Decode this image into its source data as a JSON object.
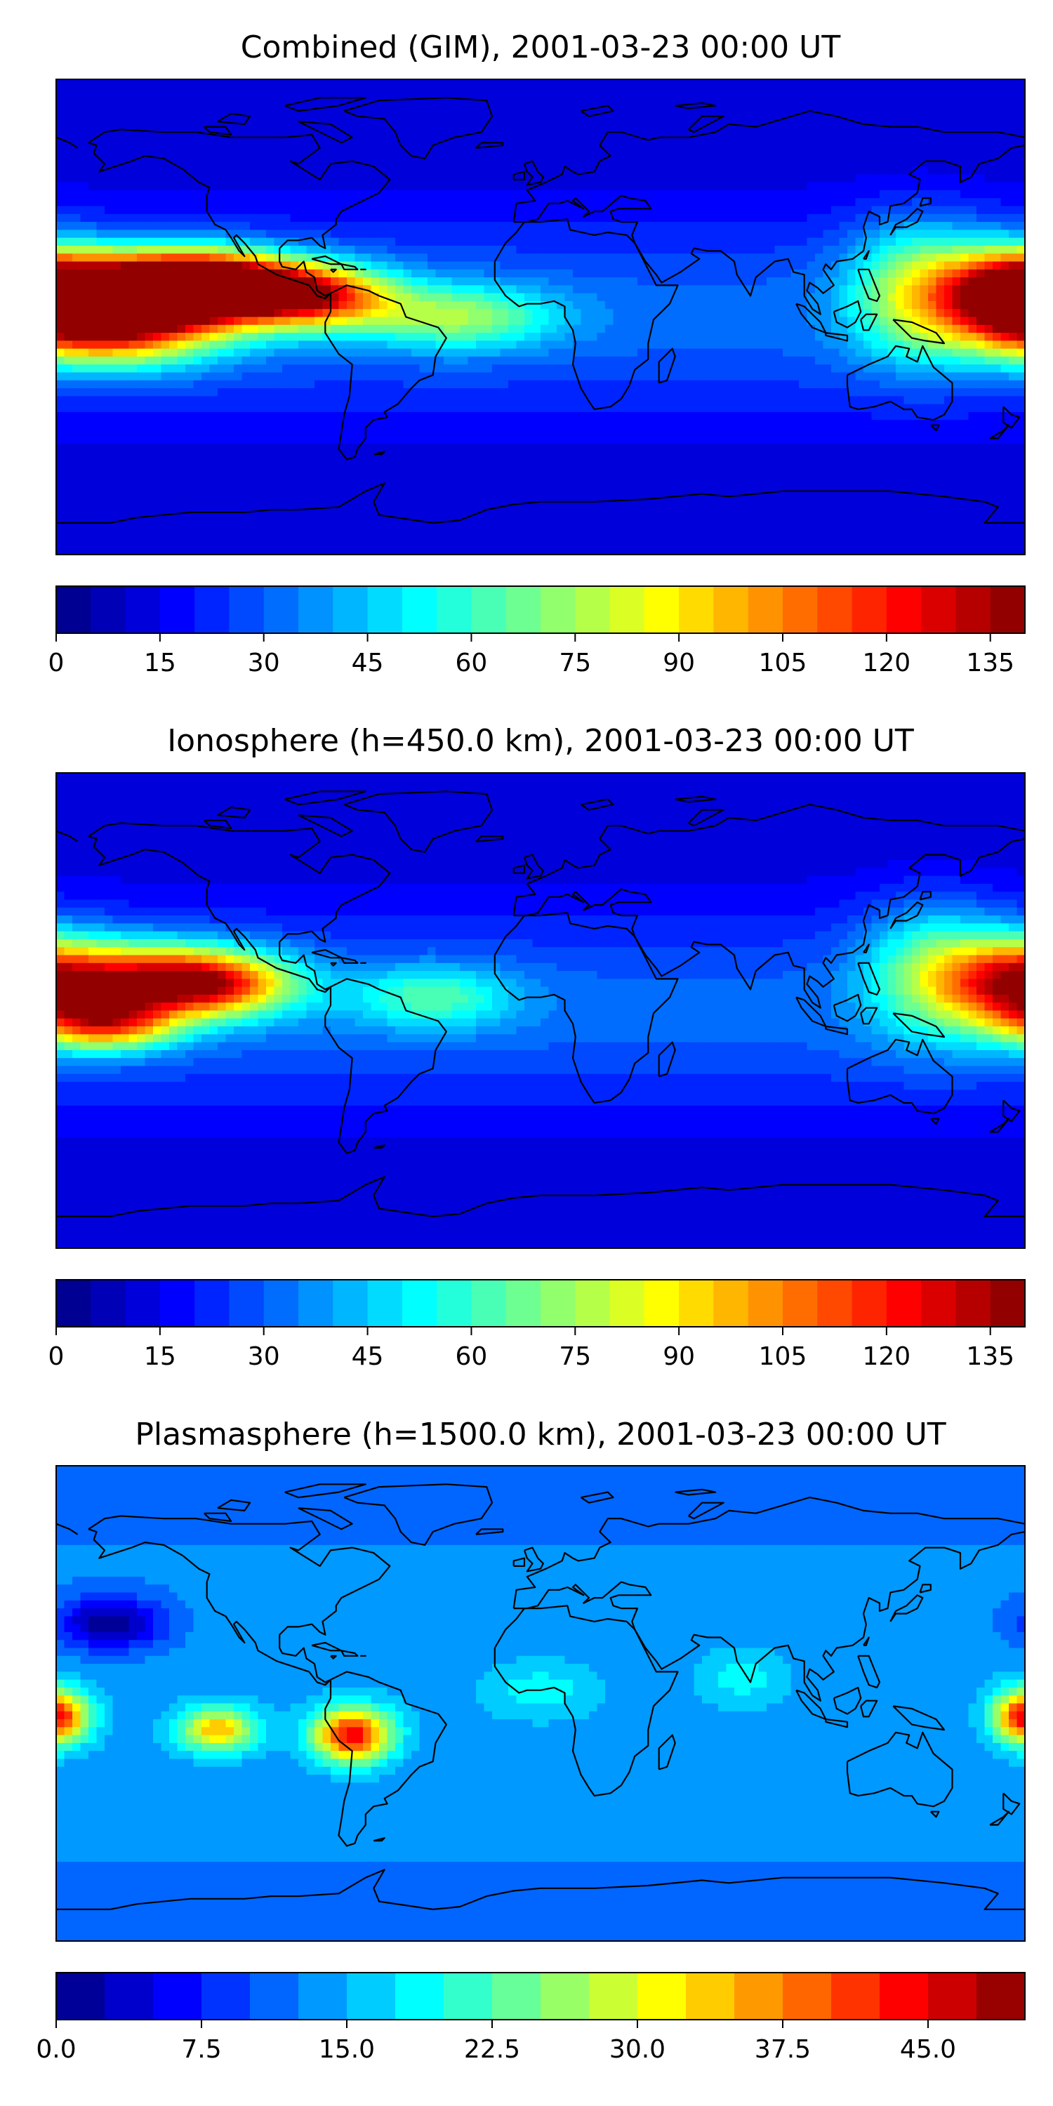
{
  "chart_data": [
    {
      "type": "heatmap",
      "title": "Combined (GIM), 2001-03-23 00:00 UT",
      "colorbar": {
        "min": 0,
        "max": 140,
        "step": 5,
        "ticks": [
          0,
          15,
          30,
          45,
          60,
          75,
          90,
          105,
          120,
          135
        ],
        "tick_labels": [
          "0",
          "15",
          "30",
          "45",
          "60",
          "75",
          "90",
          "105",
          "120",
          "135"
        ]
      },
      "blobs": [
        {
          "lon": -150,
          "lat": 10,
          "value": 128,
          "rlon": 35,
          "rlat": 14
        },
        {
          "lon": -120,
          "lat": 12,
          "value": 125,
          "rlon": 30,
          "rlat": 12
        },
        {
          "lon": -85,
          "lat": 8,
          "value": 105,
          "rlon": 30,
          "rlat": 12
        },
        {
          "lon": -160,
          "lat": -5,
          "value": 95,
          "rlon": 40,
          "rlat": 14
        },
        {
          "lon": 175,
          "lat": 10,
          "value": 110,
          "rlon": 25,
          "rlat": 16
        },
        {
          "lon": 140,
          "lat": 10,
          "value": 65,
          "rlon": 25,
          "rlat": 25
        },
        {
          "lon": -30,
          "lat": 0,
          "value": 58,
          "rlon": 35,
          "rlat": 12
        }
      ]
    },
    {
      "type": "heatmap",
      "title": "Ionosphere  (h=450.0 km), 2001-03-23 00:00 UT",
      "colorbar": {
        "min": 0,
        "max": 140,
        "step": 5,
        "ticks": [
          0,
          15,
          30,
          45,
          60,
          75,
          90,
          105,
          120,
          135
        ],
        "tick_labels": [
          "0",
          "15",
          "30",
          "45",
          "60",
          "75",
          "90",
          "105",
          "120",
          "135"
        ]
      },
      "blobs": [
        {
          "lon": -150,
          "lat": 12,
          "value": 92,
          "rlon": 40,
          "rlat": 14
        },
        {
          "lon": -160,
          "lat": -5,
          "value": 85,
          "rlon": 25,
          "rlat": 10
        },
        {
          "lon": -120,
          "lat": 10,
          "value": 80,
          "rlon": 30,
          "rlat": 12
        },
        {
          "lon": 175,
          "lat": 10,
          "value": 82,
          "rlon": 25,
          "rlat": 18
        },
        {
          "lon": 145,
          "lat": 15,
          "value": 55,
          "rlon": 25,
          "rlat": 25
        },
        {
          "lon": -40,
          "lat": 5,
          "value": 48,
          "rlon": 30,
          "rlat": 12
        }
      ]
    },
    {
      "type": "heatmap",
      "title": "Plasmasphere (h=1500.0 km), 2001-03-23 00:00 UT",
      "colorbar": {
        "min": 0,
        "max": 50,
        "step": 2.5,
        "ticks": [
          0,
          7.5,
          15,
          22.5,
          30,
          37.5,
          45
        ],
        "tick_labels": [
          "0.0",
          "7.5",
          "15.0",
          "22.5",
          "30.0",
          "37.5",
          "45.0"
        ]
      },
      "blobs": [
        {
          "lon": -70,
          "lat": -12,
          "value": 46,
          "rlon": 14,
          "rlat": 10
        },
        {
          "lon": -120,
          "lat": -10,
          "value": 36,
          "rlon": 14,
          "rlat": 8
        },
        {
          "lon": -178,
          "lat": -5,
          "value": 32,
          "rlon": 12,
          "rlat": 10
        },
        {
          "lon": 178,
          "lat": -5,
          "value": 30,
          "rlon": 10,
          "rlat": 10
        },
        {
          "lon": 0,
          "lat": 5,
          "value": 20,
          "rlon": 20,
          "rlat": 10
        },
        {
          "lon": 75,
          "lat": 10,
          "value": 20,
          "rlon": 15,
          "rlat": 10
        },
        {
          "lon": -160,
          "lat": 30,
          "value": 2,
          "rlon": 20,
          "rlat": 10
        }
      ]
    }
  ]
}
